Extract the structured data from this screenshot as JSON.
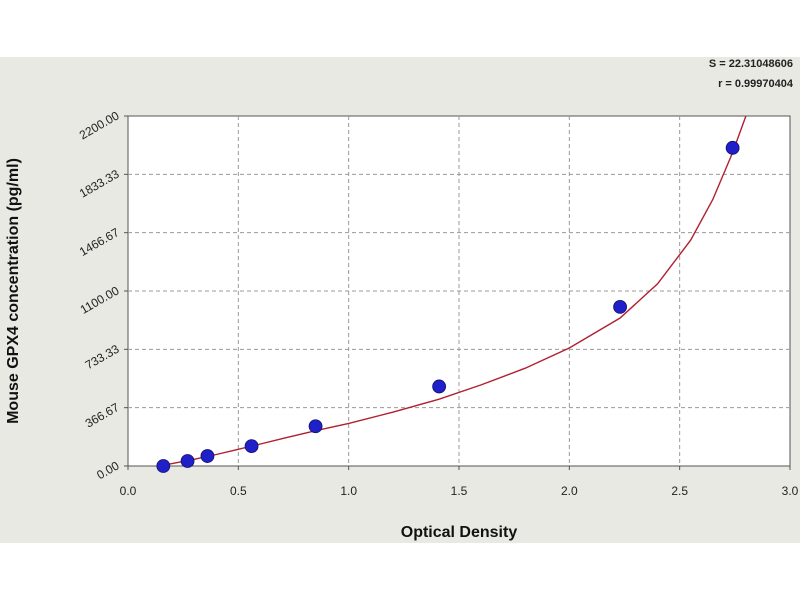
{
  "chart_data": {
    "type": "scatter",
    "title": "",
    "xlabel": "Optical Density",
    "ylabel": "Mouse GPX4 concentration (pg/ml)",
    "xlim": [
      0,
      3
    ],
    "ylim": [
      0,
      2200
    ],
    "x_ticks": [
      "0.0",
      "0.5",
      "1.0",
      "1.5",
      "2.0",
      "2.5",
      "3.0"
    ],
    "x_tick_values": [
      0,
      0.5,
      1.0,
      1.5,
      2.0,
      2.5,
      3.0
    ],
    "y_ticks": [
      "0.00",
      "366.67",
      "733.33",
      "1100.00",
      "1466.67",
      "1833.33",
      "2200.00"
    ],
    "y_tick_values": [
      0,
      366.67,
      733.33,
      1100,
      1466.67,
      1833.33,
      2200
    ],
    "grid": true,
    "points": [
      {
        "x": 0.16,
        "y": 0
      },
      {
        "x": 0.27,
        "y": 31.25
      },
      {
        "x": 0.36,
        "y": 62.5
      },
      {
        "x": 0.56,
        "y": 125
      },
      {
        "x": 0.85,
        "y": 250
      },
      {
        "x": 1.41,
        "y": 500
      },
      {
        "x": 2.23,
        "y": 1000
      },
      {
        "x": 2.74,
        "y": 2000
      }
    ],
    "fit_curve": [
      {
        "x": 0.1,
        "y": -10
      },
      {
        "x": 0.2,
        "y": 15
      },
      {
        "x": 0.3,
        "y": 42
      },
      {
        "x": 0.4,
        "y": 72
      },
      {
        "x": 0.5,
        "y": 105
      },
      {
        "x": 0.6,
        "y": 138
      },
      {
        "x": 0.7,
        "y": 172
      },
      {
        "x": 0.85,
        "y": 222
      },
      {
        "x": 1.0,
        "y": 268
      },
      {
        "x": 1.2,
        "y": 338
      },
      {
        "x": 1.41,
        "y": 420
      },
      {
        "x": 1.6,
        "y": 510
      },
      {
        "x": 1.8,
        "y": 615
      },
      {
        "x": 2.0,
        "y": 742
      },
      {
        "x": 2.23,
        "y": 930
      },
      {
        "x": 2.4,
        "y": 1145
      },
      {
        "x": 2.55,
        "y": 1420
      },
      {
        "x": 2.65,
        "y": 1675
      },
      {
        "x": 2.74,
        "y": 1970
      },
      {
        "x": 2.8,
        "y": 2200
      }
    ],
    "series_color": "#2020c8",
    "curve_color": "#b02030",
    "stats": {
      "s_text": "S = 22.31048606",
      "r_text": "r = 0.99970404"
    }
  }
}
